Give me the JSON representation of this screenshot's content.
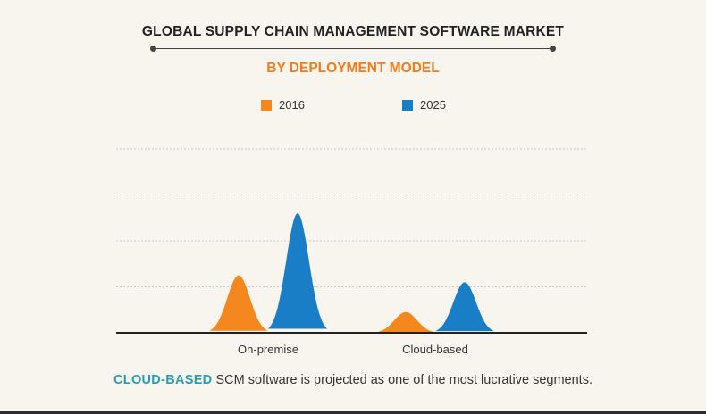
{
  "colors": {
    "series_2016": "#f5871f",
    "series_2025": "#1a7ec6",
    "subtitle": "#f07d1a",
    "footer_accent": "#2a9bb0",
    "grid": "#c9c9c9",
    "axis": "#222222"
  },
  "header": {
    "title": "GLOBAL SUPPLY CHAIN MANAGEMENT SOFTWARE MARKET",
    "subtitle": "BY DEPLOYMENT MODEL"
  },
  "legend": [
    {
      "label": "2016",
      "color": "#f5871f"
    },
    {
      "label": "2025",
      "color": "#1a7ec6"
    }
  ],
  "chart_data": {
    "type": "area",
    "title": "GLOBAL SUPPLY CHAIN MANAGEMENT SOFTWARE MARKET",
    "subtitle": "BY DEPLOYMENT MODEL",
    "categories": [
      "On-premise",
      "Cloud-based"
    ],
    "series": [
      {
        "name": "2016",
        "values": [
          1.25,
          0.45
        ]
      },
      {
        "name": "2025",
        "values": [
          2.6,
          1.1
        ]
      }
    ],
    "ylim": [
      0,
      4
    ],
    "grid": true,
    "legend_position": "top"
  },
  "footer": {
    "highlight": "CLOUD-BASED",
    "text": " SCM software is projected as one of the most lucrative segments."
  }
}
